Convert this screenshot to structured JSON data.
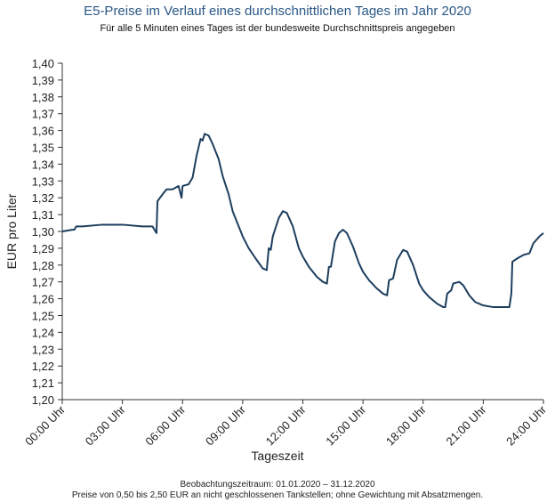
{
  "chart_data": {
    "type": "line",
    "title": "E5-Preise im Verlauf eines durchschnittlichen Tages im Jahr 2020",
    "subtitle": "Für alle 5 Minuten eines Tages ist der bundesweite Durchschnittspreis angegeben",
    "x_label": "Tageszeit",
    "y_label": "EUR pro Liter",
    "footnotes": [
      "Beobachtungszeitraum: 01.01.2020 – 31.12.2020",
      "Preise von 0,50 bis 2,50 EUR an nicht geschlossenen Tankstellen; ohne Gewichtung mit Absatzmengen."
    ],
    "x": [
      0,
      0.5,
      0.6,
      0.7,
      1.0,
      2.0,
      3.0,
      4.0,
      4.5,
      4.7,
      4.75,
      5.0,
      5.2,
      5.5,
      5.8,
      5.95,
      6.0,
      6.3,
      6.5,
      6.7,
      6.9,
      7.0,
      7.1,
      7.3,
      7.5,
      7.8,
      8.0,
      8.3,
      8.5,
      9.0,
      9.3,
      9.7,
      10.0,
      10.2,
      10.3,
      10.4,
      10.5,
      10.8,
      11.0,
      11.2,
      11.5,
      11.8,
      12.0,
      12.3,
      12.7,
      13.0,
      13.2,
      13.3,
      13.4,
      13.6,
      13.8,
      14.0,
      14.2,
      14.5,
      14.8,
      15.0,
      15.3,
      15.7,
      16.0,
      16.2,
      16.3,
      16.5,
      16.7,
      17.0,
      17.2,
      17.5,
      17.8,
      18.0,
      18.3,
      18.7,
      19.0,
      19.1,
      19.2,
      19.4,
      19.5,
      19.8,
      20.0,
      20.3,
      20.6,
      21.0,
      21.5,
      22.0,
      22.3,
      22.4,
      22.45,
      22.7,
      23.0,
      23.3,
      23.5,
      23.8,
      24.0
    ],
    "series": [
      {
        "name": "E5",
        "color": "#1d3e5e",
        "values": [
          1.3,
          1.301,
          1.301,
          1.303,
          1.303,
          1.304,
          1.304,
          1.303,
          1.303,
          1.299,
          1.318,
          1.322,
          1.325,
          1.325,
          1.327,
          1.32,
          1.327,
          1.328,
          1.332,
          1.345,
          1.355,
          1.354,
          1.358,
          1.357,
          1.352,
          1.343,
          1.333,
          1.322,
          1.312,
          1.297,
          1.29,
          1.283,
          1.278,
          1.277,
          1.29,
          1.289,
          1.297,
          1.308,
          1.312,
          1.311,
          1.303,
          1.29,
          1.285,
          1.279,
          1.273,
          1.27,
          1.269,
          1.279,
          1.279,
          1.294,
          1.299,
          1.301,
          1.299,
          1.291,
          1.281,
          1.276,
          1.271,
          1.266,
          1.263,
          1.262,
          1.271,
          1.272,
          1.283,
          1.289,
          1.288,
          1.28,
          1.269,
          1.265,
          1.261,
          1.257,
          1.255,
          1.255,
          1.263,
          1.265,
          1.269,
          1.27,
          1.268,
          1.262,
          1.258,
          1.256,
          1.255,
          1.255,
          1.255,
          1.263,
          1.282,
          1.284,
          1.286,
          1.287,
          1.293,
          1.297,
          1.299
        ]
      }
    ],
    "xlim": [
      0,
      24
    ],
    "xticks": [
      {
        "value": 0,
        "label": "00:00 Uhr"
      },
      {
        "value": 3,
        "label": "03:00 Uhr"
      },
      {
        "value": 6,
        "label": "06:00 Uhr"
      },
      {
        "value": 9,
        "label": "09:00 Uhr"
      },
      {
        "value": 12,
        "label": "12:00 Uhr"
      },
      {
        "value": 15,
        "label": "15:00 Uhr"
      },
      {
        "value": 18,
        "label": "18:00 Uhr"
      },
      {
        "value": 21,
        "label": "21:00 Uhr"
      },
      {
        "value": 24,
        "label": "24:00 Uhr"
      }
    ],
    "ylim": [
      1.2,
      1.4
    ],
    "yticks": [
      {
        "value": 1.2,
        "label": "1,20"
      },
      {
        "value": 1.21,
        "label": "1,21"
      },
      {
        "value": 1.22,
        "label": "1,22"
      },
      {
        "value": 1.23,
        "label": "1,23"
      },
      {
        "value": 1.24,
        "label": "1,24"
      },
      {
        "value": 1.25,
        "label": "1,25"
      },
      {
        "value": 1.26,
        "label": "1,26"
      },
      {
        "value": 1.27,
        "label": "1,27"
      },
      {
        "value": 1.28,
        "label": "1,28"
      },
      {
        "value": 1.29,
        "label": "1,29"
      },
      {
        "value": 1.3,
        "label": "1,30"
      },
      {
        "value": 1.31,
        "label": "1,31"
      },
      {
        "value": 1.32,
        "label": "1,32"
      },
      {
        "value": 1.33,
        "label": "1,33"
      },
      {
        "value": 1.34,
        "label": "1,34"
      },
      {
        "value": 1.35,
        "label": "1,35"
      },
      {
        "value": 1.36,
        "label": "1,36"
      },
      {
        "value": 1.37,
        "label": "1,37"
      },
      {
        "value": 1.38,
        "label": "1,38"
      },
      {
        "value": 1.39,
        "label": "1,39"
      },
      {
        "value": 1.4,
        "label": "1,40"
      }
    ],
    "grid": false
  }
}
